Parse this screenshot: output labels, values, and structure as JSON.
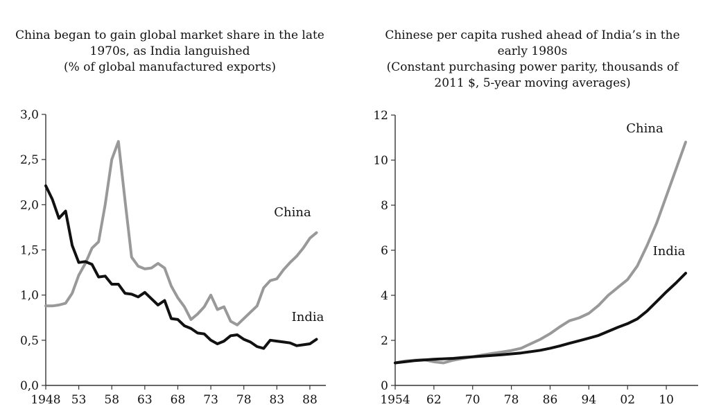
{
  "colors": {
    "china": "#999999",
    "india": "#111111",
    "axis": "#333333"
  },
  "chart_data": [
    {
      "type": "line",
      "title_lines": [
        "China began to gain global market share in the late",
        "1970s, as India languished",
        "(% of global manufactured exports)"
      ],
      "xlabel": "",
      "ylabel": "",
      "xlim": [
        1948,
        1990
      ],
      "ylim": [
        0,
        3
      ],
      "y_ticks": [
        0,
        0.5,
        1,
        1.5,
        2,
        2.5,
        3
      ],
      "y_tick_labels": [
        "0,0",
        "0,5",
        "1,0",
        "1,5",
        "2,0",
        "2,5",
        "3,0"
      ],
      "x_ticks": [
        1948,
        1953,
        1958,
        1963,
        1968,
        1973,
        1978,
        1983,
        1988
      ],
      "x_tick_labels": [
        "1948",
        "53",
        "58",
        "63",
        "68",
        "73",
        "78",
        "83",
        "88"
      ],
      "series": [
        {
          "name": "China",
          "label": "China",
          "color_key": "china",
          "x": [
            1948,
            1949,
            1950,
            1951,
            1952,
            1953,
            1954,
            1955,
            1956,
            1957,
            1958,
            1959,
            1960,
            1961,
            1962,
            1963,
            1964,
            1965,
            1966,
            1967,
            1968,
            1969,
            1970,
            1971,
            1972,
            1973,
            1974,
            1975,
            1976,
            1977,
            1978,
            1979,
            1980,
            1981,
            1982,
            1983,
            1984,
            1985,
            1986,
            1987,
            1988,
            1989
          ],
          "values": [
            0.88,
            0.88,
            0.89,
            0.91,
            1.02,
            1.22,
            1.35,
            1.52,
            1.59,
            2.0,
            2.5,
            2.7,
            2.05,
            1.42,
            1.32,
            1.29,
            1.3,
            1.35,
            1.3,
            1.1,
            0.97,
            0.87,
            0.73,
            0.79,
            0.87,
            1.0,
            0.84,
            0.87,
            0.71,
            0.67,
            0.74,
            0.81,
            0.88,
            1.08,
            1.16,
            1.18,
            1.28,
            1.36,
            1.43,
            1.52,
            1.63,
            1.69
          ]
        },
        {
          "name": "India",
          "label": "India",
          "color_key": "india",
          "x": [
            1948,
            1949,
            1950,
            1951,
            1952,
            1953,
            1954,
            1955,
            1956,
            1957,
            1958,
            1959,
            1960,
            1961,
            1962,
            1963,
            1964,
            1965,
            1966,
            1967,
            1968,
            1969,
            1970,
            1971,
            1972,
            1973,
            1974,
            1975,
            1976,
            1977,
            1978,
            1979,
            1980,
            1981,
            1982,
            1983,
            1984,
            1985,
            1986,
            1987,
            1988,
            1989
          ],
          "values": [
            2.21,
            2.06,
            1.85,
            1.93,
            1.55,
            1.36,
            1.37,
            1.34,
            1.2,
            1.21,
            1.12,
            1.12,
            1.02,
            1.01,
            0.98,
            1.03,
            0.96,
            0.89,
            0.94,
            0.74,
            0.73,
            0.66,
            0.63,
            0.58,
            0.57,
            0.5,
            0.46,
            0.49,
            0.55,
            0.56,
            0.51,
            0.48,
            0.43,
            0.41,
            0.5,
            0.49,
            0.48,
            0.47,
            0.44,
            0.45,
            0.46,
            0.51
          ]
        }
      ]
    },
    {
      "type": "line",
      "title_lines": [
        "Chinese per capita rushed ahead of India’s in the",
        "early 1980s",
        "(Constant purchasing power parity, thousands of",
        "2011 $, 5-year moving averages)"
      ],
      "xlabel": "",
      "ylabel": "",
      "xlim": [
        1954,
        2016
      ],
      "ylim": [
        0,
        12
      ],
      "y_ticks": [
        0,
        2,
        4,
        6,
        8,
        10,
        12
      ],
      "y_tick_labels": [
        "0",
        "2",
        "4",
        "6",
        "8",
        "10",
        "12"
      ],
      "x_ticks": [
        1954,
        1962,
        1970,
        1978,
        1986,
        1994,
        2002,
        2010
      ],
      "x_tick_labels": [
        "1954",
        "62",
        "70",
        "78",
        "86",
        "94",
        "02",
        "10"
      ],
      "series": [
        {
          "name": "China",
          "label": "China",
          "color_key": "china",
          "x": [
            1954,
            1956,
            1958,
            1960,
            1962,
            1964,
            1966,
            1968,
            1970,
            1972,
            1974,
            1976,
            1978,
            1980,
            1982,
            1984,
            1986,
            1988,
            1990,
            1992,
            1994,
            1996,
            1998,
            2000,
            2002,
            2004,
            2006,
            2008,
            2010,
            2012,
            2014
          ],
          "values": [
            1.0,
            1.08,
            1.12,
            1.14,
            1.05,
            1.0,
            1.12,
            1.2,
            1.27,
            1.35,
            1.42,
            1.48,
            1.55,
            1.65,
            1.85,
            2.05,
            2.3,
            2.6,
            2.87,
            3.0,
            3.2,
            3.55,
            4.0,
            4.35,
            4.7,
            5.3,
            6.2,
            7.2,
            8.4,
            9.6,
            10.8
          ]
        },
        {
          "name": "India",
          "label": "India",
          "color_key": "india",
          "x": [
            1954,
            1956,
            1958,
            1960,
            1962,
            1964,
            1966,
            1968,
            1970,
            1972,
            1974,
            1976,
            1978,
            1980,
            1982,
            1984,
            1986,
            1988,
            1990,
            1992,
            1994,
            1996,
            1998,
            2000,
            2002,
            2004,
            2006,
            2008,
            2010,
            2012,
            2014
          ],
          "values": [
            1.0,
            1.05,
            1.1,
            1.13,
            1.16,
            1.18,
            1.2,
            1.24,
            1.27,
            1.3,
            1.33,
            1.36,
            1.4,
            1.44,
            1.5,
            1.56,
            1.65,
            1.75,
            1.87,
            1.98,
            2.1,
            2.22,
            2.4,
            2.58,
            2.74,
            2.95,
            3.3,
            3.72,
            4.15,
            4.55,
            4.98
          ]
        }
      ]
    }
  ]
}
